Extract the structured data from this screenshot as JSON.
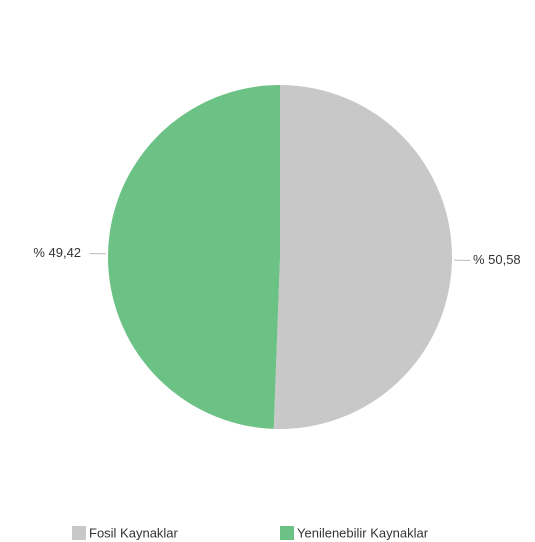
{
  "chart_data": {
    "type": "pie",
    "categories": [
      "Fosil Kaynaklar",
      "Yenilenebilir Kaynaklar"
    ],
    "values": [
      50.58,
      49.42
    ],
    "value_labels": [
      "% 50,58",
      "% 49,42"
    ],
    "colors": [
      "#c8c8c8",
      "#6cc285"
    ],
    "legend": "bottom"
  }
}
